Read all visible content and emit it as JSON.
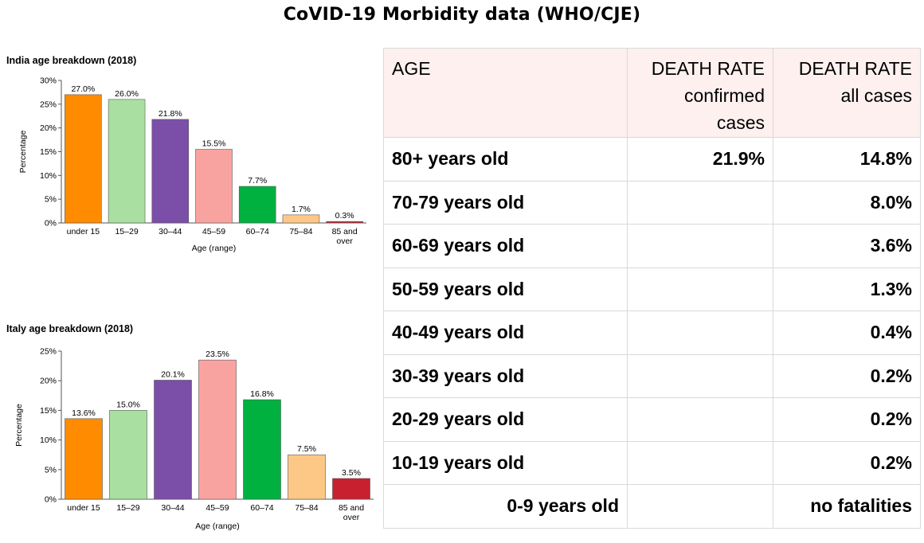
{
  "page": {
    "title": "CoVID-19 Morbidity data (WHO/CJE)"
  },
  "chart_data": [
    {
      "type": "bar",
      "title": "India age breakdown (2018)",
      "xlabel": "Age (range)",
      "ylabel": "Percentage",
      "categories": [
        "under 15",
        "15–29",
        "30–44",
        "45–59",
        "60–74",
        "75–84",
        "85 and over"
      ],
      "category_lines": [
        [
          "under 15"
        ],
        [
          "15–29"
        ],
        [
          "30–44"
        ],
        [
          "45–59"
        ],
        [
          "60–74"
        ],
        [
          "75–84"
        ],
        [
          "85 and",
          "over"
        ]
      ],
      "values": [
        27.0,
        26.0,
        21.8,
        15.5,
        7.7,
        1.7,
        0.3
      ],
      "value_labels": [
        "27.0%",
        "26.0%",
        "21.8%",
        "15.5%",
        "7.7%",
        "1.7%",
        "0.3%"
      ],
      "colors": [
        "#ff8c00",
        "#a9dfa0",
        "#7b4ea8",
        "#f9a3a0",
        "#00b140",
        "#fdc886",
        "#c8202f"
      ],
      "ylim": [
        0,
        30
      ],
      "yticks": [
        0,
        5,
        10,
        15,
        20,
        25,
        30
      ],
      "ytick_labels": [
        "0%",
        "5%",
        "10%",
        "15%",
        "20%",
        "25%",
        "30%"
      ],
      "grid": false,
      "legend": "none"
    },
    {
      "type": "bar",
      "title": "Italy age breakdown (2018)",
      "xlabel": "Age (range)",
      "ylabel": "Percentage",
      "categories": [
        "under 15",
        "15–29",
        "30–44",
        "45–59",
        "60–74",
        "75–84",
        "85 and over"
      ],
      "category_lines": [
        [
          "under 15"
        ],
        [
          "15–29"
        ],
        [
          "30–44"
        ],
        [
          "45–59"
        ],
        [
          "60–74"
        ],
        [
          "75–84"
        ],
        [
          "85 and",
          "over"
        ]
      ],
      "values": [
        13.6,
        15.0,
        20.1,
        23.5,
        16.8,
        7.5,
        3.5
      ],
      "value_labels": [
        "13.6%",
        "15.0%",
        "20.1%",
        "23.5%",
        "16.8%",
        "7.5%",
        "3.5%"
      ],
      "colors": [
        "#ff8c00",
        "#a9dfa0",
        "#7b4ea8",
        "#f9a3a0",
        "#00b140",
        "#fdc886",
        "#c8202f"
      ],
      "ylim": [
        0,
        25
      ],
      "yticks": [
        0,
        5,
        10,
        15,
        20,
        25
      ],
      "ytick_labels": [
        "0%",
        "5%",
        "10%",
        "15%",
        "20%",
        "25%"
      ],
      "grid": false,
      "legend": "none"
    },
    {
      "type": "table",
      "columns": [
        {
          "lines": [
            "AGE"
          ]
        },
        {
          "lines": [
            "DEATH RATE",
            "confirmed",
            "cases"
          ]
        },
        {
          "lines": [
            "DEATH RATE",
            "all cases"
          ]
        }
      ],
      "rows": [
        [
          "80+ years old",
          "21.9%",
          "14.8%"
        ],
        [
          "70-79 years old",
          "",
          "8.0%"
        ],
        [
          "60-69 years old",
          "",
          "3.6%"
        ],
        [
          "50-59 years old",
          "",
          "1.3%"
        ],
        [
          "40-49 years old",
          "",
          "0.4%"
        ],
        [
          "30-39 years old",
          "",
          "0.2%"
        ],
        [
          "20-29 years old",
          "",
          "0.2%"
        ],
        [
          "10-19 years old",
          "",
          "0.2%"
        ],
        [
          "0-9 years old",
          "",
          "no fatalities"
        ]
      ]
    }
  ]
}
